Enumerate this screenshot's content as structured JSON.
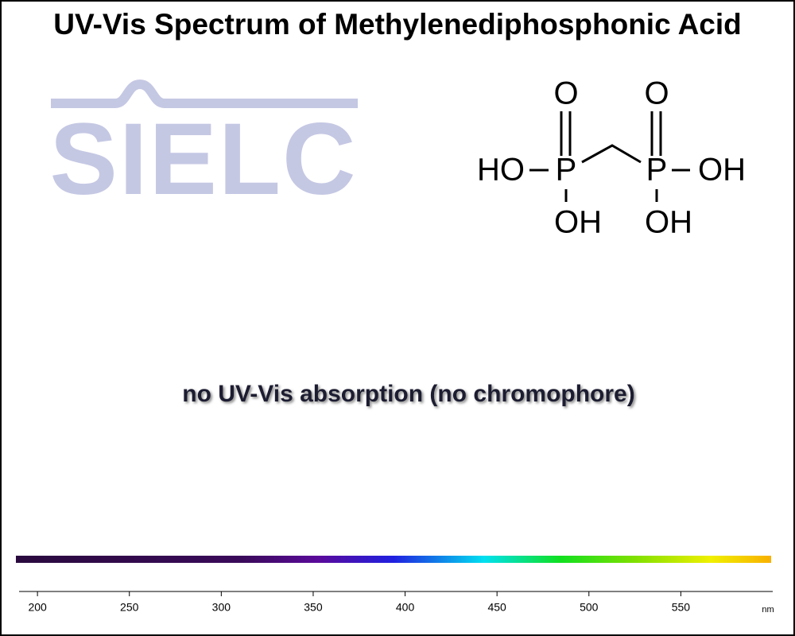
{
  "chart_data": {
    "type": "spectrum",
    "title": "UV-Vis Spectrum of Methylenediphosphonic Acid",
    "annotation": "no UV-Vis absorption (no chromophore)",
    "x_unit": "nm",
    "xlim": [
      190,
      600
    ],
    "xticks": [
      200,
      250,
      300,
      350,
      400,
      450,
      500,
      550
    ]
  },
  "logo": {
    "text": "SIELC"
  },
  "structure": {
    "atoms": [
      "O",
      "O",
      "HO",
      "P",
      "P",
      "OH",
      "OH",
      "OH"
    ]
  }
}
